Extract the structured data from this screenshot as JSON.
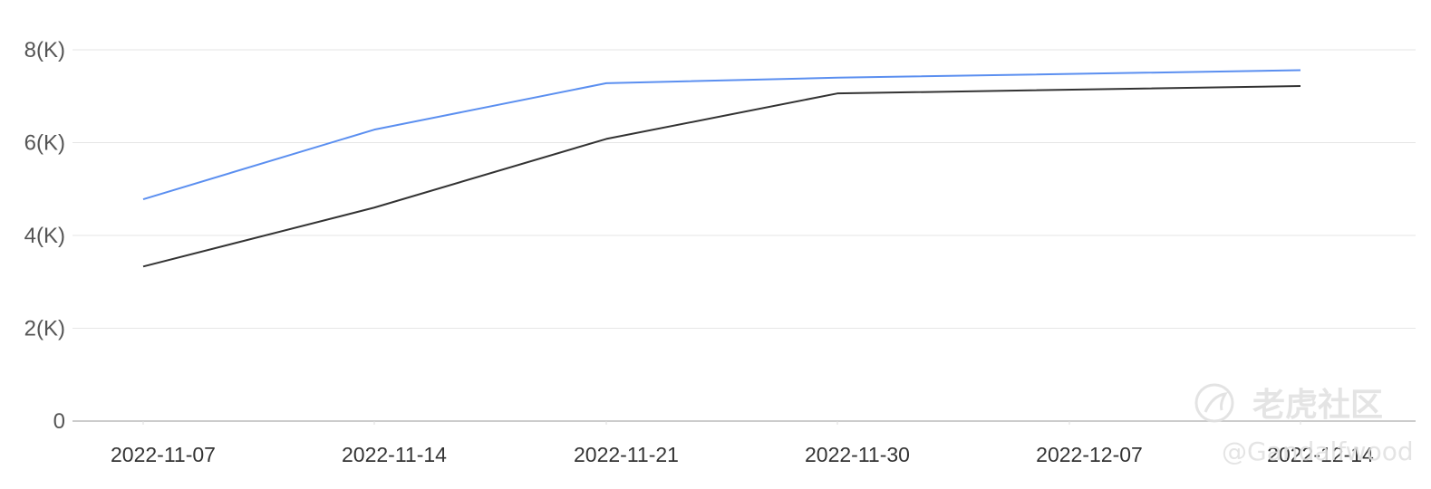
{
  "chart_data": {
    "type": "line",
    "x": [
      "2022-11-07",
      "2022-11-14",
      "2022-11-21",
      "2022-11-30",
      "2022-12-07",
      "2022-12-14"
    ],
    "y_ticks": [
      "0",
      "2(K)",
      "4(K)",
      "6(K)",
      "8(K)"
    ],
    "ylim": [
      0,
      8000
    ],
    "grid": true,
    "series": [
      {
        "color": "#5b8ff0",
        "values": [
          4780,
          6280,
          7280,
          null,
          null,
          7560
        ],
        "points_x": [
          "2022-11-07",
          "2022-11-14",
          "2022-11-21",
          "2022-11-30",
          null,
          "2022-12-14"
        ],
        "values_at_points": [
          4780,
          6280,
          7280,
          7400,
          null,
          7560
        ]
      },
      {
        "color": "#333333",
        "values": [
          3330,
          4600,
          6080,
          7060,
          null,
          7220
        ],
        "points_x": [
          "2022-11-07",
          "2022-11-14",
          "2022-11-21",
          "2022-11-30",
          null,
          "2022-12-14"
        ],
        "values_at_points": [
          3330,
          4600,
          6080,
          7060,
          null,
          7220
        ]
      }
    ]
  },
  "watermark": {
    "brand": "老虎社区",
    "handle": "@Gandalfwood",
    "icon": "tiger-logo-icon"
  }
}
